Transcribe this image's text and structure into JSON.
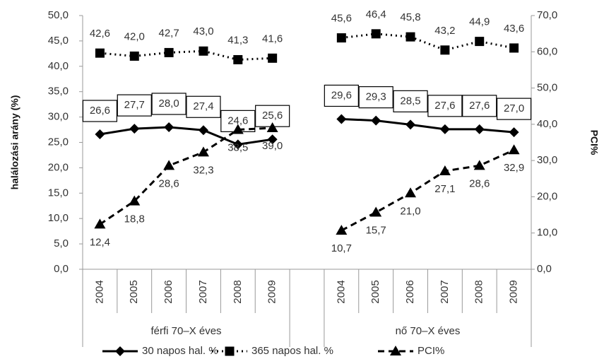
{
  "chart_data": {
    "type": "line",
    "categories": [
      "2004",
      "2005",
      "2006",
      "2007",
      "2008",
      "2009",
      null,
      "2004",
      "2005",
      "2006",
      "2007",
      "2008",
      "2009"
    ],
    "group_labels": [
      "férfi 70–X éves",
      "nő 70–X éves"
    ],
    "y_label": "halálozási arány (%)",
    "y2_label": "PCI%",
    "ylim": [
      0,
      50
    ],
    "yticks": [
      {
        "value": 0,
        "label": "0,0"
      },
      {
        "value": 5,
        "label": "5,0"
      },
      {
        "value": 10,
        "label": "10,0"
      },
      {
        "value": 15,
        "label": "15,0"
      },
      {
        "value": 20,
        "label": "20,0"
      },
      {
        "value": 25,
        "label": "25,0"
      },
      {
        "value": 30,
        "label": "30,0"
      },
      {
        "value": 35,
        "label": "35,0"
      },
      {
        "value": 40,
        "label": "40,0"
      },
      {
        "value": 45,
        "label": "45,0"
      },
      {
        "value": 50,
        "label": "50,0"
      }
    ],
    "y2lim": [
      0,
      70
    ],
    "y2ticks": [
      {
        "value": 0,
        "label": "0,0"
      },
      {
        "value": 10,
        "label": "10,0"
      },
      {
        "value": 20,
        "label": "20,0"
      },
      {
        "value": 30,
        "label": "30,0"
      },
      {
        "value": 40,
        "label": "40,0"
      },
      {
        "value": 50,
        "label": "50,0"
      },
      {
        "value": 60,
        "label": "60,0"
      },
      {
        "value": 70,
        "label": "70,0"
      }
    ],
    "series": [
      {
        "name": "30 napos hal. %",
        "color": "#000000",
        "line_style": "solid",
        "marker": "diamond",
        "label_position": "boxed-above",
        "values": [
          26.6,
          27.7,
          28.0,
          27.4,
          24.6,
          25.6,
          null,
          29.6,
          29.3,
          28.5,
          27.6,
          27.6,
          27.0
        ],
        "value_labels": [
          "26,6",
          "27,7",
          "28,0",
          "27,4",
          "24,6",
          "25,6",
          null,
          "29,6",
          "29,3",
          "28,5",
          "27,6",
          "27,6",
          "27,0"
        ]
      },
      {
        "name": "365 napos hal. %",
        "color": "#000000",
        "line_style": "dotted",
        "marker": "square",
        "label_position": "above",
        "values": [
          42.6,
          42.0,
          42.7,
          43.0,
          41.3,
          41.6,
          null,
          45.6,
          46.4,
          45.8,
          43.2,
          44.9,
          43.6
        ],
        "value_labels": [
          "42,6",
          "42,0",
          "42,7",
          "43,0",
          "41,3",
          "41,6",
          null,
          "45,6",
          "46,4",
          "45,8",
          "43,2",
          "44,9",
          "43,6"
        ]
      },
      {
        "name": "PCI%",
        "color": "#000000",
        "line_style": "dashed",
        "marker": "triangle",
        "axis": "y2",
        "label_position": "below",
        "values": [
          12.4,
          18.8,
          28.6,
          32.3,
          38.5,
          39.0,
          null,
          10.7,
          15.7,
          21.0,
          27.1,
          28.6,
          32.9
        ],
        "value_labels": [
          "12,4",
          "18,8",
          "28,6",
          "32,3",
          "38,5",
          "39,0",
          null,
          "10,7",
          "15,7",
          "21,0",
          "27,1",
          "28,6",
          "32,9"
        ]
      }
    ]
  }
}
